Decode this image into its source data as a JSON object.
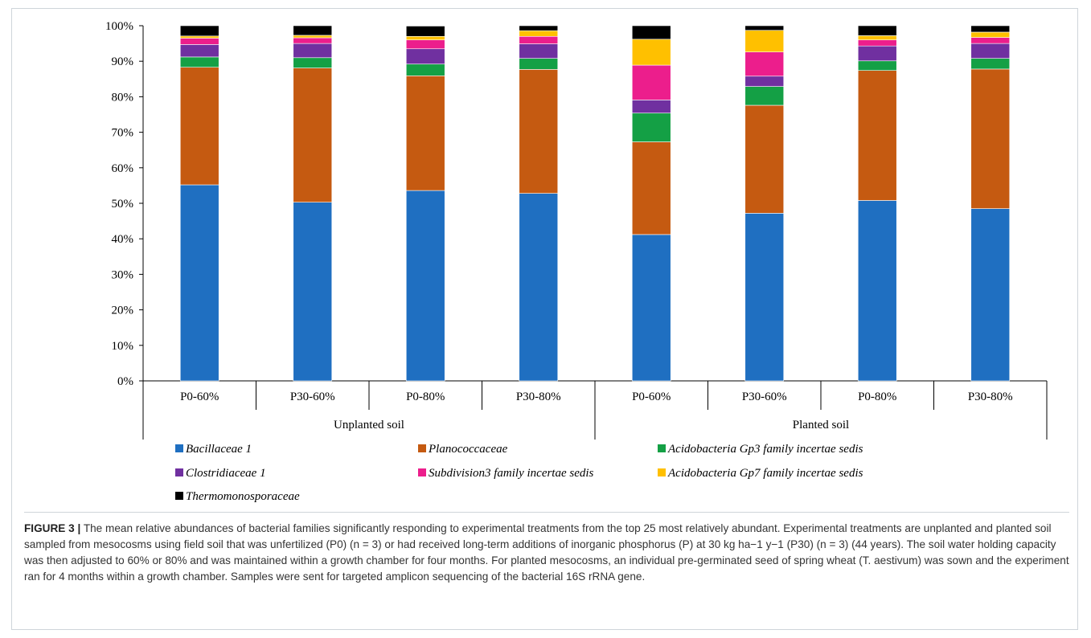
{
  "chart_data": {
    "type": "bar",
    "stacked": true,
    "yticks": [
      "0%",
      "10%",
      "20%",
      "30%",
      "40%",
      "50%",
      "60%",
      "70%",
      "80%",
      "90%",
      "100%"
    ],
    "ylim": [
      0,
      100
    ],
    "categories": [
      "P0-60%",
      "P30-60%",
      "P0-80%",
      "P30-80%",
      "P0-60%",
      "P30-60%",
      "P0-80%",
      "P30-80%"
    ],
    "groups": [
      {
        "label": "Unplanted soil",
        "span": 4
      },
      {
        "label": "Planted soil",
        "span": 4
      }
    ],
    "legend_position": "bottom",
    "series": [
      {
        "name": "Bacillaceae 1",
        "color": "#1f6fc1",
        "values": [
          55.2,
          50.3,
          53.6,
          52.8,
          41.2,
          47.2,
          50.8,
          48.5
        ]
      },
      {
        "name": "Planococcaceae",
        "color": "#c55a11",
        "values": [
          33.1,
          37.8,
          32.3,
          34.9,
          26.1,
          30.4,
          36.6,
          39.3
        ]
      },
      {
        "name": "Acidobacteria Gp3 family incertae sedis",
        "color": "#14a045",
        "values": [
          2.9,
          2.9,
          3.3,
          3.1,
          8.1,
          5.3,
          2.7,
          3.0
        ]
      },
      {
        "name": "Clostridiaceae 1",
        "color": "#7030a0",
        "values": [
          3.5,
          4.0,
          4.3,
          4.1,
          3.7,
          2.9,
          4.2,
          4.2
        ]
      },
      {
        "name": "Subdivision3 family incertae sedis",
        "color": "#ec1e8c",
        "values": [
          1.8,
          1.6,
          2.5,
          2.1,
          9.8,
          6.8,
          1.7,
          1.7
        ]
      },
      {
        "name": "Acidobacteria Gp7 family incertae sedis",
        "color": "#ffc000",
        "values": [
          0.6,
          0.7,
          1.0,
          1.6,
          7.3,
          6.1,
          1.2,
          1.5
        ]
      },
      {
        "name": "Thermomonosporaceae",
        "color": "#000000",
        "values": [
          2.9,
          2.7,
          2.9,
          1.4,
          3.8,
          1.3,
          2.8,
          1.8
        ]
      }
    ]
  },
  "caption": {
    "figure_label": "FIGURE 3 |",
    "text": "The mean relative abundances of bacterial families significantly responding to experimental treatments from the top 25 most relatively abundant. Experimental treatments are unplanted and planted soil sampled from mesocosms using field soil that was unfertilized (P0) (n = 3) or had received long-term additions of inorganic phosphorus (P) at 30 kg ha−1 y−1 (P30) (n = 3) (44 years). The soil water holding capacity was then adjusted to 60% or 80% and was maintained within a growth chamber for four months. For planted mesocosms, an individual pre-germinated seed of spring wheat (T. aestivum) was sown and the experiment ran for 4 months within a growth chamber. Samples were sent for targeted amplicon sequencing of the bacterial 16S rRNA gene."
  }
}
